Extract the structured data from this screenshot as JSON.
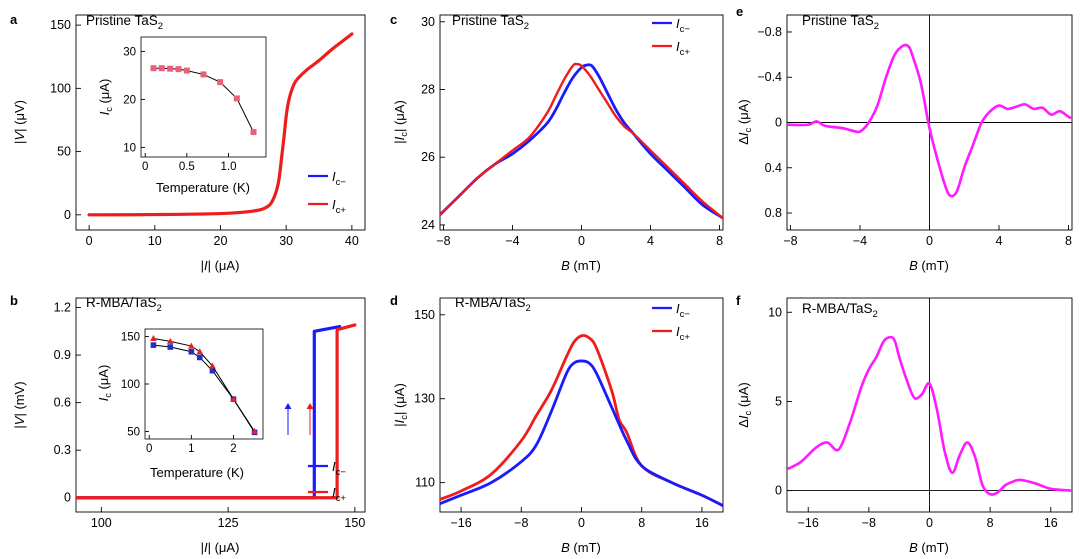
{
  "colors": {
    "blue": "#1a1aff",
    "red": "#ee1c1c",
    "magenta": "#ff1aff",
    "insetPink": "#e8607a",
    "insetBlue": "#2030c8",
    "insetRed": "#e82020"
  },
  "chart_data": [
    {
      "id": "a",
      "type": "line",
      "panel_label": "a",
      "title": "Pristine TaS₂",
      "xlabel": "|I| (μA)",
      "ylabel": "|V| (μV)",
      "xlim": [
        -2,
        42
      ],
      "ylim": [
        -12,
        158
      ],
      "xticks": [
        0,
        10,
        20,
        30,
        40
      ],
      "yticks": [
        0,
        50,
        100,
        150
      ],
      "legend": [
        "I_c−",
        "I_c+"
      ],
      "series": [
        {
          "name": "I_c−",
          "color": "blue",
          "x": [
            0,
            10,
            20,
            25,
            27,
            28,
            28.8,
            29.3,
            29.7,
            30,
            30.3,
            30.8,
            31.5,
            33,
            35,
            37,
            39,
            40
          ],
          "y": [
            0,
            0.2,
            1,
            3,
            6,
            12,
            25,
            45,
            63,
            78,
            88,
            98,
            106,
            114,
            122,
            131,
            139,
            143
          ]
        },
        {
          "name": "I_c+",
          "color": "red",
          "x": [
            0,
            10,
            20,
            25,
            27,
            28,
            28.8,
            29.3,
            29.7,
            30,
            30.3,
            30.8,
            31.5,
            33,
            35,
            37,
            39,
            40
          ],
          "y": [
            0,
            0.2,
            1,
            3,
            6,
            12,
            25,
            45,
            63,
            78,
            88,
            98,
            106,
            114,
            122,
            131,
            139,
            143
          ]
        }
      ]
    },
    {
      "id": "a_inset",
      "type": "scatter",
      "xlabel": "Temperature (K)",
      "ylabel": "I_c (μA)",
      "xlim": [
        -0.05,
        1.45
      ],
      "ylim": [
        8,
        33
      ],
      "xticks": [
        0,
        0.5,
        1.0
      ],
      "xticklabels": [
        "0",
        "0.5",
        "1.0"
      ],
      "yticks": [
        10,
        20,
        30
      ],
      "x": [
        0.1,
        0.2,
        0.3,
        0.4,
        0.5,
        0.7,
        0.9,
        1.1,
        1.3
      ],
      "y": [
        26.5,
        26.5,
        26.4,
        26.3,
        26.0,
        25.2,
        23.6,
        20.2,
        13.2
      ]
    },
    {
      "id": "b",
      "type": "line",
      "panel_label": "b",
      "title": "R-MBA/TaS₂",
      "xlabel": "|I| (μA)",
      "ylabel": "|V| (mV)",
      "xlim": [
        95,
        152
      ],
      "ylim": [
        -0.09,
        1.26
      ],
      "xticks": [
        100,
        125,
        150
      ],
      "yticks": [
        0,
        0.3,
        0.6,
        0.9,
        1.2
      ],
      "yticklabels": [
        "0",
        "0.3",
        "0.6",
        "0.9",
        "1.2"
      ],
      "legend": [
        "I_c−",
        "I_c+"
      ],
      "series": [
        {
          "name": "I_c−",
          "color": "blue",
          "x": [
            95,
            142,
            142,
            147
          ],
          "y": [
            0,
            0,
            1.05,
            1.08
          ]
        },
        {
          "name": "I_c+",
          "color": "red",
          "x": [
            95,
            146.5,
            146.5,
            150
          ],
          "y": [
            0,
            0,
            1.06,
            1.09
          ]
        }
      ]
    },
    {
      "id": "b_inset",
      "type": "scatter",
      "xlabel": "Temperature (K)",
      "ylabel": "I_c (μA)",
      "xlim": [
        -0.1,
        2.7
      ],
      "ylim": [
        42,
        158
      ],
      "xticks": [
        0,
        1,
        2
      ],
      "yticks": [
        50,
        100,
        150
      ],
      "series": [
        {
          "name": "I_c−",
          "color": "insetBlue",
          "x": [
            0.1,
            0.5,
            1.0,
            1.2,
            1.5,
            2.0,
            2.5
          ],
          "y": [
            141,
            139,
            134,
            128,
            114,
            84,
            49
          ]
        },
        {
          "name": "I_c+",
          "color": "insetRed",
          "x": [
            0.1,
            0.5,
            1.0,
            1.2,
            1.5,
            2.0,
            2.5
          ],
          "y": [
            148,
            145,
            140,
            134,
            119,
            84,
            50
          ]
        }
      ]
    },
    {
      "id": "c",
      "type": "line",
      "panel_label": "c",
      "title": "Pristine TaS₂",
      "xlabel": "B (mT)",
      "ylabel": "|I_c| (μA)",
      "xlim": [
        -8.2,
        8.2
      ],
      "ylim": [
        23.85,
        30.2
      ],
      "xticks": [
        -8,
        -4,
        0,
        4,
        8
      ],
      "xticklabels": [
        "−8",
        "−4",
        "0",
        "4",
        "8"
      ],
      "yticks": [
        24,
        26,
        28,
        30
      ],
      "legend": [
        "I_c−",
        "I_c+"
      ],
      "series": [
        {
          "name": "I_c−",
          "color": "blue",
          "x": [
            -8.2,
            -7,
            -6,
            -5,
            -4,
            -3,
            -2,
            -1.5,
            -1,
            -0.5,
            0,
            0.3,
            0.6,
            1,
            1.5,
            2,
            2.5,
            3,
            4,
            5,
            6,
            7,
            8.2
          ],
          "y": [
            24.3,
            24.9,
            25.4,
            25.8,
            26.1,
            26.5,
            27.0,
            27.4,
            27.9,
            28.35,
            28.65,
            28.72,
            28.7,
            28.4,
            27.9,
            27.4,
            27.0,
            26.7,
            26.1,
            25.6,
            25.1,
            24.6,
            24.2
          ]
        },
        {
          "name": "I_c+",
          "color": "red",
          "x": [
            -8.2,
            -7,
            -6,
            -5,
            -4,
            -3,
            -2,
            -1.5,
            -1,
            -0.5,
            -0.3,
            0,
            0.5,
            1,
            1.5,
            2,
            2.5,
            3,
            4,
            5,
            6,
            7,
            8.2
          ],
          "y": [
            24.3,
            24.9,
            25.4,
            25.8,
            26.2,
            26.6,
            27.3,
            27.8,
            28.3,
            28.7,
            28.75,
            28.7,
            28.4,
            28.0,
            27.6,
            27.2,
            26.9,
            26.7,
            26.2,
            25.7,
            25.2,
            24.7,
            24.2
          ]
        }
      ]
    },
    {
      "id": "d",
      "type": "line",
      "panel_label": "d",
      "title": "R-MBA/TaS₂",
      "xlabel": "B (mT)",
      "ylabel": "|I_c| (μA)",
      "xlim": [
        -18.8,
        18.8
      ],
      "ylim": [
        103,
        154
      ],
      "xticks": [
        -16,
        -8,
        0,
        8,
        16
      ],
      "xticklabels": [
        "−16",
        "−8",
        "0",
        "8",
        "16"
      ],
      "yticks": [
        110,
        130,
        150
      ],
      "legend": [
        "I_c−",
        "I_c+"
      ],
      "series": [
        {
          "name": "I_c−",
          "color": "blue",
          "x": [
            -18.8,
            -16,
            -12,
            -8,
            -6,
            -4,
            -2,
            -1,
            0,
            1,
            2,
            4,
            6,
            8,
            12,
            16,
            18.8
          ],
          "y": [
            105,
            107,
            110,
            115,
            119,
            127,
            136,
            138.5,
            139,
            138.5,
            136,
            128,
            120,
            114,
            110,
            107,
            104.5
          ]
        },
        {
          "name": "I_c+",
          "color": "red",
          "x": [
            -18.8,
            -16,
            -12,
            -8,
            -6,
            -4,
            -2,
            -1,
            0,
            1,
            2,
            4,
            5,
            6,
            8,
            12,
            16,
            18.8
          ],
          "y": [
            106,
            108,
            112,
            120,
            126,
            132,
            140,
            143.5,
            145,
            144.5,
            142,
            132,
            125,
            122,
            114,
            110,
            107,
            104.5
          ]
        }
      ]
    },
    {
      "id": "e",
      "type": "line",
      "panel_label": "e",
      "title": "Pristine TaS₂",
      "xlabel": "B (mT)",
      "ylabel": "ΔI_c (μA)",
      "xlim": [
        -8.2,
        8.2
      ],
      "ylim": [
        0.95,
        -0.95
      ],
      "y_inverted": true,
      "xticks": [
        -8,
        -4,
        0,
        4,
        8
      ],
      "xticklabels": [
        "−8",
        "−4",
        "0",
        "4",
        "8"
      ],
      "yticks": [
        -0.8,
        -0.4,
        0,
        0.4,
        0.8
      ],
      "yticklabels": [
        "−0.8",
        "−0.4",
        "0",
        "0.4",
        "0.8"
      ],
      "series": [
        {
          "name": "ΔI_c",
          "color": "magenta",
          "x": [
            -8.2,
            -7,
            -6.5,
            -6,
            -5,
            -4.5,
            -4,
            -3.5,
            -3,
            -2.5,
            -2,
            -1.5,
            -1.2,
            -1,
            -0.5,
            0,
            0.5,
            1,
            1.3,
            1.6,
            2,
            2.5,
            3,
            3.5,
            4,
            4.5,
            5,
            5.5,
            6,
            6.5,
            7,
            7.5,
            8,
            8.2
          ],
          "y": [
            0.02,
            0.02,
            -0.01,
            0.03,
            0.05,
            0.07,
            0.08,
            0.0,
            -0.15,
            -0.4,
            -0.6,
            -0.68,
            -0.67,
            -0.6,
            -0.35,
            0.05,
            0.35,
            0.6,
            0.65,
            0.6,
            0.4,
            0.2,
            0.0,
            -0.1,
            -0.15,
            -0.12,
            -0.14,
            -0.16,
            -0.12,
            -0.13,
            -0.07,
            -0.1,
            -0.05,
            -0.04
          ]
        }
      ]
    },
    {
      "id": "f",
      "type": "line",
      "panel_label": "f",
      "title": "R-MBA/TaS₂",
      "xlabel": "B (mT)",
      "ylabel": "ΔI_c (μA)",
      "xlim": [
        -18.8,
        18.8
      ],
      "ylim": [
        -1.2,
        10.8
      ],
      "xticks": [
        -16,
        -8,
        0,
        8,
        16
      ],
      "xticklabels": [
        "−16",
        "−8",
        "0",
        "8",
        "16"
      ],
      "yticks": [
        0,
        5,
        10
      ],
      "series": [
        {
          "name": "ΔI_c",
          "color": "magenta",
          "x": [
            -18.8,
            -17,
            -15,
            -13.5,
            -12,
            -10.5,
            -9,
            -8,
            -7,
            -6,
            -5,
            -4.5,
            -4,
            -3,
            -2,
            -1,
            0,
            1,
            2,
            3,
            4,
            5,
            6,
            7,
            8,
            9,
            10,
            11,
            12,
            14,
            16,
            18.8
          ],
          "y": [
            1.2,
            1.6,
            2.4,
            2.7,
            2.3,
            3.8,
            5.8,
            6.8,
            7.5,
            8.4,
            8.6,
            8.3,
            7.5,
            6.2,
            5.2,
            5.4,
            6.0,
            4.5,
            2.2,
            1.0,
            2.0,
            2.7,
            1.9,
            0.3,
            -0.2,
            -0.1,
            0.3,
            0.5,
            0.6,
            0.4,
            0.1,
            0.0
          ]
        }
      ]
    }
  ],
  "labels": {
    "a": "a",
    "b": "b",
    "c": "c",
    "d": "d",
    "e": "e",
    "f": "f",
    "title_pristine": "Pristine TaS",
    "title_rmba": "R-MBA/TaS",
    "sub2": "2",
    "I": "I",
    "V": "V",
    "B": "B",
    "c_sub": "c",
    "cminus": "c−",
    "cplus": "c+",
    "Delta": "Δ",
    "uA": " (μA)",
    "uV": " (μV)",
    "mV": " (mV)",
    "mT": " (mT)",
    "temperature": "Temperature (K)"
  }
}
